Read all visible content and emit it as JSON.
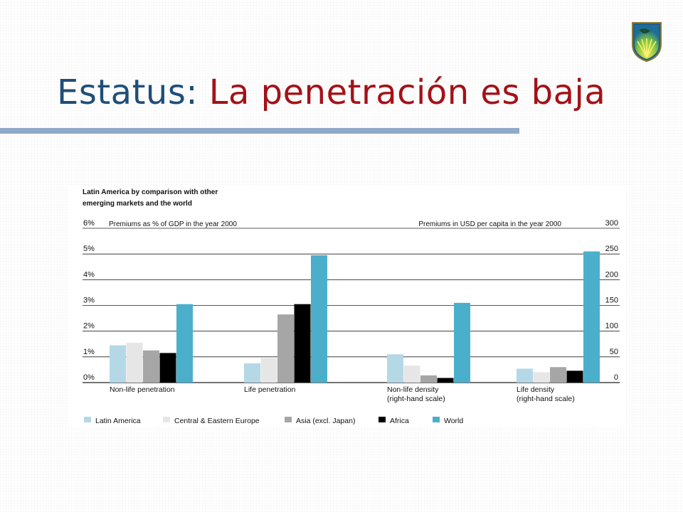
{
  "slide": {
    "title_part1": "Estatus:",
    "title_part2": "La penetración es baja",
    "colors": {
      "title_blue": "#1f4e79",
      "title_red": "#a31218",
      "bar": "#8fa9c8"
    },
    "logo_icon": "globe-shield-icon"
  },
  "chart_data": {
    "type": "bar",
    "heading_lines": [
      "Latin America by comparison with other",
      "emerging markets and the world"
    ],
    "left_axis_title": "Premiums as % of GDP in the year 2000",
    "right_axis_title": "Premiums in USD per capita in the year 2000",
    "left_ticks": [
      "0%",
      "1%",
      "2%",
      "3%",
      "4%",
      "5%",
      "6%"
    ],
    "right_ticks": [
      "0",
      "50",
      "100",
      "150",
      "200",
      "250",
      "300"
    ],
    "left_ylim": [
      0,
      6
    ],
    "right_ylim": [
      0,
      300
    ],
    "grid": true,
    "legend_position": "bottom",
    "categories": [
      {
        "lines": [
          "Non-life penetration"
        ],
        "axis": "left"
      },
      {
        "lines": [
          "Life penetration"
        ],
        "axis": "left"
      },
      {
        "lines": [
          "Non-life density",
          "(right-hand scale)"
        ],
        "axis": "right"
      },
      {
        "lines": [
          "Life density",
          "(right-hand scale)"
        ],
        "axis": "right"
      }
    ],
    "series": [
      {
        "name": "Latin America",
        "color": "#b5d8e7",
        "values": [
          1.45,
          0.75,
          55,
          27
        ]
      },
      {
        "name": "Central & Eastern Europe",
        "color": "#e6e6e6",
        "values": [
          1.55,
          0.95,
          33,
          20
        ]
      },
      {
        "name": "Asia (excl. Japan)",
        "color": "#a6a6a6",
        "values": [
          1.25,
          2.65,
          14,
          30
        ]
      },
      {
        "name": "Africa",
        "color": "#000000",
        "values": [
          1.15,
          3.05,
          9,
          23
        ]
      },
      {
        "name": "World",
        "color": "#4bafcb",
        "values": [
          3.05,
          4.95,
          155,
          255
        ]
      }
    ]
  }
}
